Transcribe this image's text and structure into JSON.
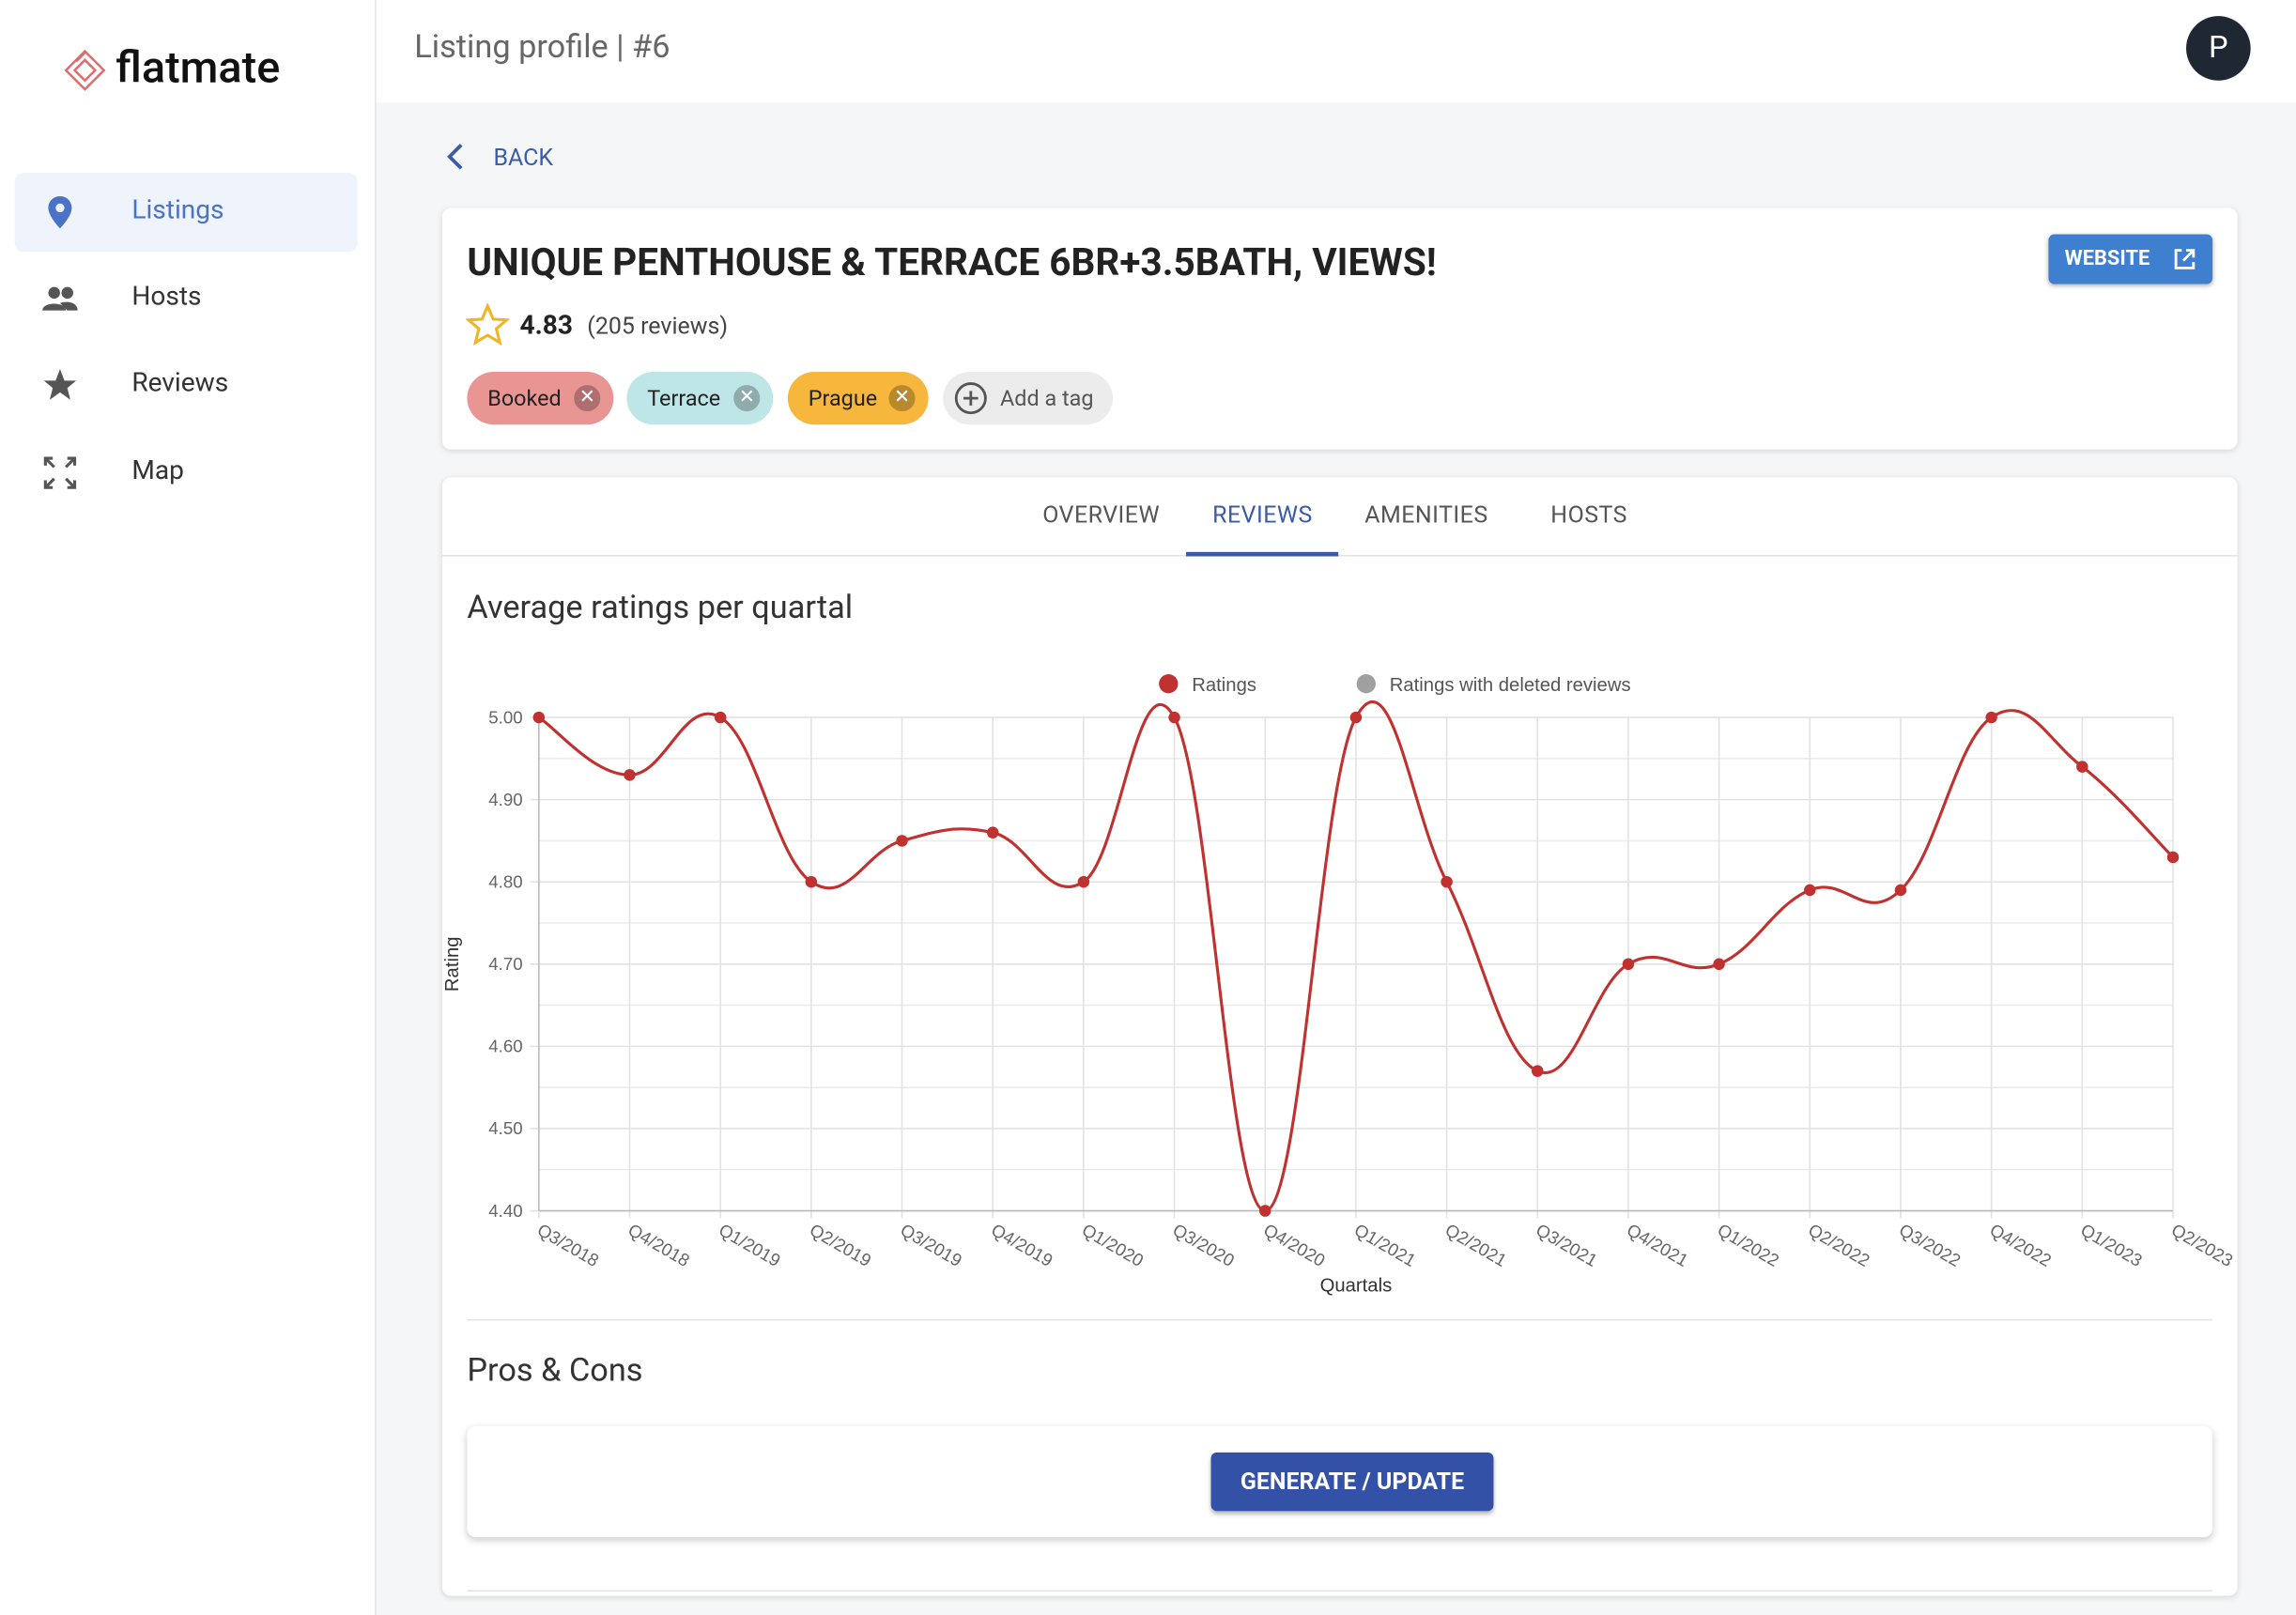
{
  "sidebar": {
    "logo": "flatmate",
    "nav": [
      "Listings",
      "Hosts",
      "Reviews",
      "Map"
    ]
  },
  "header": {
    "title": "Listing profile | #6",
    "avatar": "P"
  },
  "back": "BACK",
  "listing": {
    "title": "UNIQUE PENTHOUSE & TERRACE 6BR+3.5BATH, VIEWS!",
    "rating": 4.83,
    "reviews": "(205 reviews)",
    "tags": [
      "Booked",
      "Terrace",
      "Prague"
    ],
    "add_tag": "Add a tag",
    "website": "WEBSITE"
  },
  "tabs": [
    "OVERVIEW",
    "REVIEWS",
    "AMENITIES",
    "HOSTS"
  ],
  "chart_data": {
    "type": "line",
    "title": "Average ratings per quartal",
    "x_label": "Quartals",
    "y_label": "Rating",
    "categories": [
      "Q3/2018",
      "Q4/2018",
      "Q1/2019",
      "Q2/2019",
      "Q3/2019",
      "Q4/2019",
      "Q1/2020",
      "Q3/2020",
      "Q4/2020",
      "Q1/2021",
      "Q2/2021",
      "Q3/2021",
      "Q4/2021",
      "Q1/2022",
      "Q2/2022",
      "Q3/2022",
      "Q4/2022",
      "Q1/2023",
      "Q2/2023"
    ],
    "series": [
      {
        "name": "Ratings",
        "color": "#c0312f",
        "values": [
          5.0,
          4.93,
          5.0,
          4.8,
          4.85,
          4.86,
          4.8,
          5.0,
          4.4,
          5.0,
          4.8,
          4.57,
          4.7,
          4.7,
          4.79,
          4.79,
          5.0,
          4.94,
          4.83
        ]
      },
      {
        "name": "Ratings with deleted reviews",
        "color": "#a0a0a0",
        "values": [
          null,
          null,
          null,
          null,
          null,
          null,
          null,
          null,
          null,
          null,
          null,
          null,
          null,
          null,
          null,
          null,
          null,
          null,
          null
        ]
      }
    ],
    "ylim": [
      4.4,
      5.0
    ],
    "yticks": [
      {
        "value": 4.4,
        "label": "4.40"
      },
      {
        "value": 4.5,
        "label": "4.50"
      },
      {
        "value": 4.6,
        "label": "4.60"
      },
      {
        "value": 4.7,
        "label": "4.70"
      },
      {
        "value": 4.8,
        "label": "4.80"
      },
      {
        "value": 4.9,
        "label": "4.90"
      },
      {
        "value": 5.0,
        "label": "5.00"
      }
    ],
    "grid": true
  },
  "pros_cons": {
    "title": "Pros & Cons",
    "button": "GENERATE / UPDATE"
  }
}
